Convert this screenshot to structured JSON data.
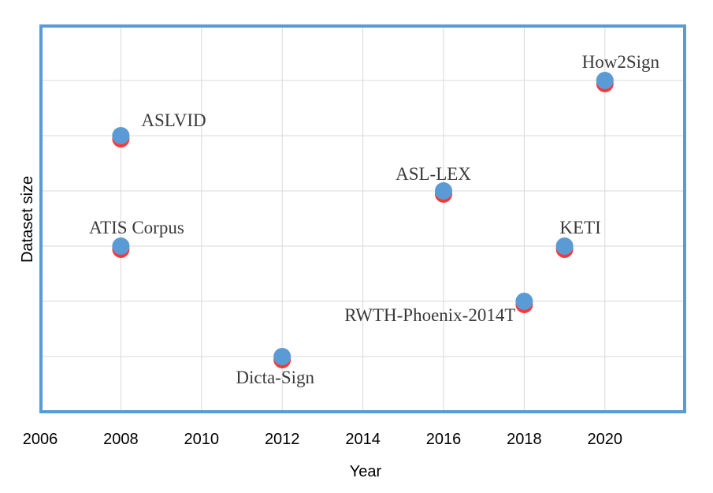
{
  "chart_data": {
    "type": "scatter",
    "title": "",
    "xlabel": "Year",
    "ylabel": "Dataset size",
    "xlim": [
      2006,
      2022
    ],
    "ylim": [
      0,
      7
    ],
    "x_ticks": [
      2006,
      2008,
      2010,
      2012,
      2014,
      2016,
      2018,
      2020
    ],
    "y_gridlines": [
      1,
      2,
      3,
      4,
      5,
      6
    ],
    "y_tick_labels_shown": false,
    "grid": true,
    "legend": "none",
    "points": [
      {
        "label": "ASLVID",
        "x": 2008,
        "y": 5,
        "label_anchor": "upper-right"
      },
      {
        "label": "ATIS Corpus",
        "x": 2008,
        "y": 3,
        "label_anchor": "above"
      },
      {
        "label": "Dicta-Sign",
        "x": 2012,
        "y": 1,
        "label_anchor": "below"
      },
      {
        "label": "ASL-LEX",
        "x": 2016,
        "y": 4,
        "label_anchor": "above-left"
      },
      {
        "label": "RWTH-Phoenix-2014T",
        "x": 2018,
        "y": 2,
        "label_anchor": "below-left"
      },
      {
        "label": "KETI",
        "x": 2019,
        "y": 3,
        "label_anchor": "above"
      },
      {
        "label": "How2Sign",
        "x": 2020,
        "y": 6,
        "label_anchor": "above"
      }
    ],
    "colors": {
      "point_fill": "#5b9bd5",
      "point_shadow": "#ff2020",
      "plot_border": "#5b9bd5",
      "gridline": "#d9d9d9",
      "label_text": "#3a3a3a"
    }
  }
}
